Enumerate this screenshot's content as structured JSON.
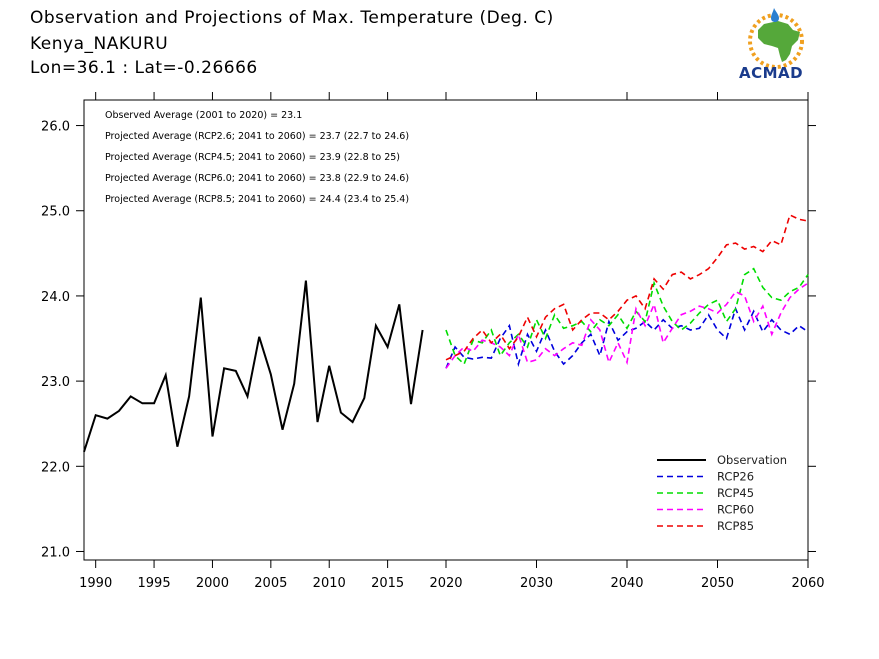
{
  "title_lines": [
    "Observation and Projections of Max. Temperature (Deg. C)",
    "Kenya_NAKURU",
    "Lon=36.1 : Lat=-0.26666"
  ],
  "logo": {
    "label": "ACMAD",
    "colors": {
      "africa": "#55a83a",
      "sun": "#f0a020",
      "text": "#1a3b8c"
    }
  },
  "chart_data": {
    "type": "line",
    "title": "Observation and Projections of Max. Temperature (Deg. C)",
    "xlabel": "",
    "ylabel": "",
    "xlim": [
      1989,
      2060
    ],
    "ylim": [
      20.9,
      26.3
    ],
    "grid": false,
    "xticks_left": [
      1990,
      1995,
      2000,
      2005,
      2010,
      2015,
      2020
    ],
    "xticks_right": [
      2020,
      2030,
      2040,
      2050,
      2060
    ],
    "yticks": [
      21.0,
      22.0,
      23.0,
      24.0,
      25.0,
      26.0
    ],
    "ytick_labels": [
      "21.0",
      "22.0",
      "23.0",
      "24.0",
      "25.0",
      "26.0"
    ],
    "annotations": [
      "Observed Average (2001 to 2020) = 23.1",
      "Projected Average (RCP2.6; 2041 to 2060) = 23.7 (22.7 to 24.6)",
      "Projected Average (RCP4.5; 2041 to 2060) = 23.9 (22.8 to 25)",
      "Projected Average (RCP6.0; 2041 to 2060) = 23.8 (22.9 to 24.6)",
      "Projected Average (RCP8.5; 2041 to 2060) = 24.4 (23.4 to 25.4)"
    ],
    "legend_position": "bottom-right",
    "series": [
      {
        "name": "Observation",
        "color": "#000000",
        "style": "solid",
        "x": [
          1989,
          1990,
          1991,
          1992,
          1993,
          1994,
          1995,
          1996,
          1997,
          1998,
          1999,
          2000,
          2001,
          2002,
          2003,
          2004,
          2005,
          2006,
          2007,
          2008,
          2009,
          2010,
          2011,
          2012,
          2013,
          2014,
          2015,
          2016,
          2017,
          2018,
          2019,
          2020
        ],
        "y": [
          22.17,
          22.6,
          22.56,
          22.65,
          22.82,
          22.74,
          22.74,
          23.07,
          22.23,
          22.82,
          23.98,
          22.35,
          23.15,
          23.12,
          22.82,
          23.52,
          23.08,
          22.43,
          22.97,
          24.18,
          22.52,
          23.18,
          22.63,
          22.52,
          22.8,
          23.65,
          23.4,
          23.9,
          22.73,
          23.6,
          null,
          null
        ]
      },
      {
        "name": "RCP26",
        "color": "#0000dd",
        "style": "dashed",
        "x": [
          2020,
          2021,
          2022,
          2023,
          2024,
          2025,
          2026,
          2027,
          2028,
          2029,
          2030,
          2031,
          2032,
          2033,
          2034,
          2035,
          2036,
          2037,
          2038,
          2039,
          2040,
          2041,
          2042,
          2043,
          2044,
          2045,
          2046,
          2047,
          2048,
          2049,
          2050,
          2051,
          2052,
          2053,
          2054,
          2055,
          2056,
          2057,
          2058,
          2059,
          2060
        ],
        "y": [
          23.15,
          23.4,
          23.28,
          23.26,
          23.28,
          23.27,
          23.5,
          23.65,
          23.2,
          23.55,
          23.35,
          23.6,
          23.35,
          23.2,
          23.3,
          23.45,
          23.55,
          23.3,
          23.7,
          23.48,
          23.58,
          23.62,
          23.7,
          23.6,
          23.72,
          23.62,
          23.65,
          23.6,
          23.62,
          23.78,
          23.6,
          23.5,
          23.85,
          23.6,
          23.82,
          23.58,
          23.72,
          23.6,
          23.55,
          23.65,
          23.58
        ]
      },
      {
        "name": "RCP45",
        "color": "#00dd00",
        "style": "dashed",
        "x": [
          2020,
          2021,
          2022,
          2023,
          2024,
          2025,
          2026,
          2027,
          2028,
          2029,
          2030,
          2031,
          2032,
          2033,
          2034,
          2035,
          2036,
          2037,
          2038,
          2039,
          2040,
          2041,
          2042,
          2043,
          2044,
          2045,
          2046,
          2047,
          2048,
          2049,
          2050,
          2051,
          2052,
          2053,
          2054,
          2055,
          2056,
          2057,
          2058,
          2059,
          2060
        ],
        "y": [
          23.6,
          23.3,
          23.2,
          23.48,
          23.45,
          23.6,
          23.3,
          23.45,
          23.55,
          23.4,
          23.72,
          23.5,
          23.78,
          23.62,
          23.65,
          23.7,
          23.58,
          23.72,
          23.65,
          23.78,
          23.62,
          23.82,
          23.7,
          24.15,
          23.88,
          23.7,
          23.6,
          23.68,
          23.8,
          23.9,
          23.95,
          23.7,
          23.85,
          24.25,
          24.32,
          24.1,
          23.98,
          23.95,
          24.05,
          24.1,
          24.25
        ]
      },
      {
        "name": "RCP60",
        "color": "#ff00ff",
        "style": "dashed",
        "x": [
          2020,
          2021,
          2022,
          2023,
          2024,
          2025,
          2026,
          2027,
          2028,
          2029,
          2030,
          2031,
          2032,
          2033,
          2034,
          2035,
          2036,
          2037,
          2038,
          2039,
          2040,
          2041,
          2042,
          2043,
          2044,
          2045,
          2046,
          2047,
          2048,
          2049,
          2050,
          2051,
          2052,
          2053,
          2054,
          2055,
          2056,
          2057,
          2058,
          2059,
          2060
        ],
        "y": [
          23.15,
          23.3,
          23.4,
          23.35,
          23.48,
          23.45,
          23.4,
          23.3,
          23.55,
          23.22,
          23.25,
          23.38,
          23.3,
          23.38,
          23.45,
          23.42,
          23.72,
          23.6,
          23.22,
          23.45,
          23.22,
          23.85,
          23.65,
          23.9,
          23.45,
          23.62,
          23.78,
          23.82,
          23.88,
          23.85,
          23.8,
          23.9,
          24.05,
          24.0,
          23.7,
          23.88,
          23.55,
          23.8,
          23.98,
          24.08,
          24.15
        ]
      },
      {
        "name": "RCP85",
        "color": "#ee0000",
        "style": "dashed",
        "x": [
          2020,
          2021,
          2022,
          2023,
          2024,
          2025,
          2026,
          2027,
          2028,
          2029,
          2030,
          2031,
          2032,
          2033,
          2034,
          2035,
          2036,
          2037,
          2038,
          2039,
          2040,
          2041,
          2042,
          2043,
          2044,
          2045,
          2046,
          2047,
          2048,
          2049,
          2050,
          2051,
          2052,
          2053,
          2054,
          2055,
          2056,
          2057,
          2058,
          2059,
          2060
        ],
        "y": [
          23.25,
          23.3,
          23.35,
          23.5,
          23.6,
          23.45,
          23.55,
          23.38,
          23.52,
          23.75,
          23.52,
          23.75,
          23.85,
          23.9,
          23.6,
          23.72,
          23.8,
          23.8,
          23.72,
          23.82,
          23.95,
          24.0,
          23.85,
          24.2,
          24.08,
          24.25,
          24.28,
          24.2,
          24.25,
          24.32,
          24.45,
          24.6,
          24.62,
          24.55,
          24.58,
          24.52,
          24.65,
          24.6,
          24.95,
          24.9,
          24.88
        ]
      }
    ]
  }
}
